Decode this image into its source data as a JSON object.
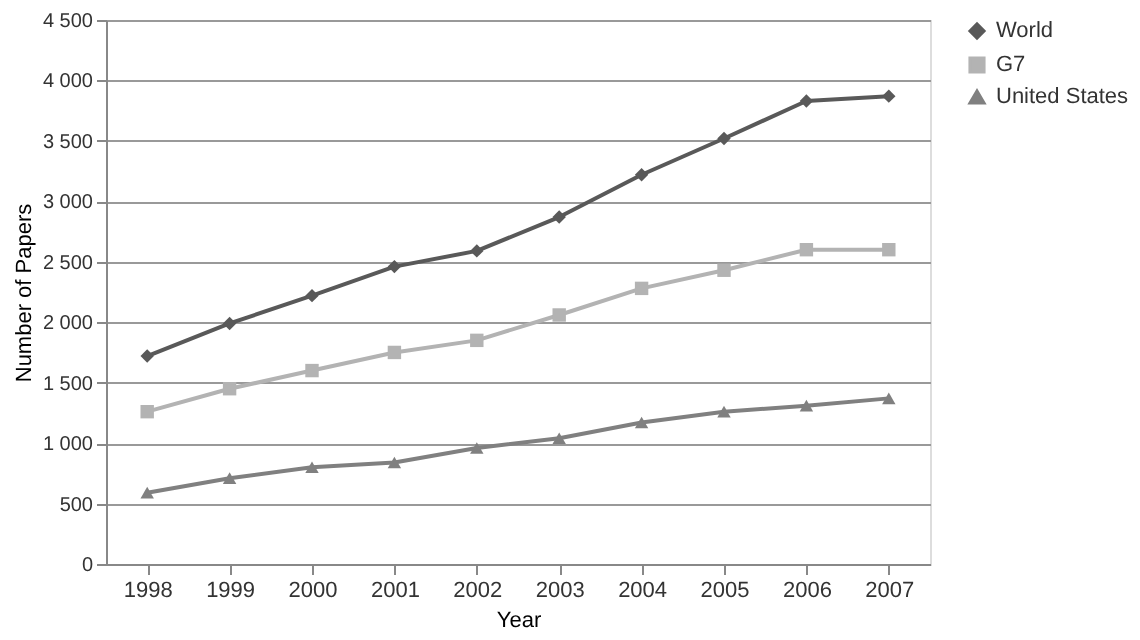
{
  "chart_data": {
    "type": "line",
    "xlabel": "Year",
    "ylabel": "Number of Papers",
    "categories": [
      "1998",
      "1999",
      "2000",
      "2001",
      "2002",
      "2003",
      "2004",
      "2005",
      "2006",
      "2007"
    ],
    "series": [
      {
        "name": "World",
        "color": "#595959",
        "marker": "diamond",
        "values": [
          1720,
          1990,
          2220,
          2460,
          2590,
          2870,
          3220,
          3520,
          3830,
          3870
        ]
      },
      {
        "name": "G7",
        "color": "#b3b3b3",
        "marker": "square",
        "values": [
          1260,
          1450,
          1600,
          1750,
          1850,
          2060,
          2280,
          2430,
          2600,
          2600
        ]
      },
      {
        "name": "United States",
        "color": "#808080",
        "marker": "triangle",
        "values": [
          590,
          710,
          800,
          840,
          960,
          1040,
          1170,
          1260,
          1310,
          1370
        ]
      }
    ],
    "ylim": [
      0,
      4500
    ],
    "yticks": [
      0,
      500,
      {
        "value": 1000,
        "label": "1 000"
      },
      {
        "value": 1500,
        "label": "1 500"
      },
      {
        "value": 2000,
        "label": "2 000"
      },
      {
        "value": 2500,
        "label": "2 500"
      },
      {
        "value": 3000,
        "label": "3 000"
      },
      {
        "value": 3500,
        "label": "3 500"
      },
      {
        "value": 4000,
        "label": "4 000"
      },
      {
        "value": 4500,
        "label": "4 500"
      }
    ],
    "grid": "y",
    "legend": "right",
    "line_style": "solid"
  }
}
